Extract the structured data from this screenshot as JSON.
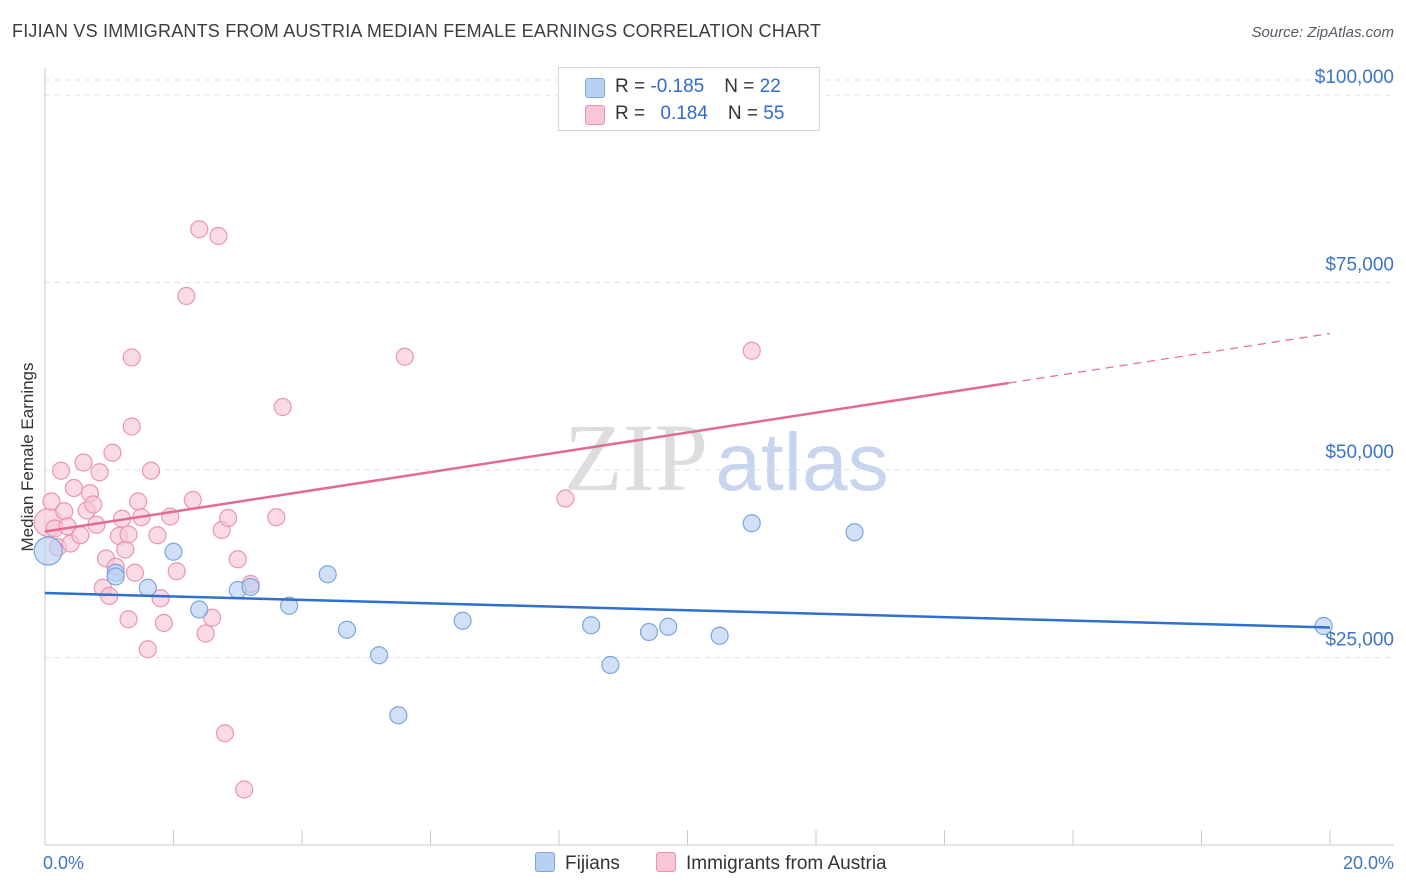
{
  "title": "FIJIAN VS IMMIGRANTS FROM AUSTRIA MEDIAN FEMALE EARNINGS CORRELATION CHART",
  "source": "Source: ZipAtlas.com",
  "watermark": {
    "zip": "ZIP",
    "atlas": "atlas"
  },
  "legend": {
    "fijians": {
      "r_label": "R = ",
      "r_value": "-0.185",
      "n_label": "N = ",
      "n_value": "22"
    },
    "austria": {
      "r_label": "R = ",
      "r_value": "0.184",
      "n_label": "N = ",
      "n_value": "55"
    }
  },
  "colors": {
    "blue_fill": "#b8d0f2",
    "blue_stroke": "#7aa4e0",
    "blue_line": "#2e6fd0",
    "pink_fill": "#f8c6d6",
    "pink_stroke": "#eb94b2",
    "pink_line": "#e26a93",
    "tick_text": "#3d74c6",
    "grid": "#dfe1e5"
  },
  "chart_data": {
    "type": "scatter",
    "title": "FIJIAN VS IMMIGRANTS FROM AUSTRIA MEDIAN FEMALE EARNINGS CORRELATION CHART",
    "xlabel": "",
    "ylabel": "Median Female Earnings",
    "xlim": [
      0,
      20
    ],
    "ylim": [
      0,
      102000
    ],
    "x_tick_labels": {
      "left": "0.0%",
      "right": "20.0%"
    },
    "y_ticks": [
      {
        "value": 25000,
        "label": "$25,000"
      },
      {
        "value": 50000,
        "label": "$50,000"
      },
      {
        "value": 75000,
        "label": "$75,000"
      },
      {
        "value": 100000,
        "label": "$100,000"
      }
    ],
    "series": [
      {
        "name": "Fijians",
        "r": -0.185,
        "n": 22,
        "trend": {
          "x0": 0,
          "y0": 33600,
          "x1": 20,
          "y1": 29000,
          "solid_to": 20
        },
        "points": [
          {
            "x": 0.05,
            "y": 39200,
            "big": true
          },
          {
            "x": 1.1,
            "y": 36300
          },
          {
            "x": 1.1,
            "y": 35800
          },
          {
            "x": 1.6,
            "y": 34300
          },
          {
            "x": 2.0,
            "y": 39100
          },
          {
            "x": 2.4,
            "y": 31400
          },
          {
            "x": 3.0,
            "y": 34000
          },
          {
            "x": 3.2,
            "y": 34400
          },
          {
            "x": 3.8,
            "y": 31900
          },
          {
            "x": 4.4,
            "y": 36100
          },
          {
            "x": 4.7,
            "y": 28700
          },
          {
            "x": 5.2,
            "y": 25300
          },
          {
            "x": 5.5,
            "y": 17300
          },
          {
            "x": 6.5,
            "y": 29900
          },
          {
            "x": 8.5,
            "y": 29300
          },
          {
            "x": 8.8,
            "y": 24000
          },
          {
            "x": 9.4,
            "y": 28400
          },
          {
            "x": 9.7,
            "y": 29100
          },
          {
            "x": 10.5,
            "y": 27900
          },
          {
            "x": 11.0,
            "y": 42900
          },
          {
            "x": 12.6,
            "y": 41700
          },
          {
            "x": 19.9,
            "y": 29200
          }
        ]
      },
      {
        "name": "Immigrants from Austria",
        "r": 0.184,
        "n": 55,
        "trend": {
          "x0": 0,
          "y0": 41800,
          "x1": 20,
          "y1": 68200,
          "solid_to": 15
        },
        "points": [
          {
            "x": 0.05,
            "y": 43000,
            "big": true
          },
          {
            "x": 0.1,
            "y": 45800
          },
          {
            "x": 0.15,
            "y": 42200
          },
          {
            "x": 0.2,
            "y": 39700
          },
          {
            "x": 0.25,
            "y": 49900
          },
          {
            "x": 0.3,
            "y": 44500
          },
          {
            "x": 0.35,
            "y": 42500
          },
          {
            "x": 0.4,
            "y": 40200
          },
          {
            "x": 0.45,
            "y": 47600
          },
          {
            "x": 0.55,
            "y": 41300
          },
          {
            "x": 0.6,
            "y": 51000
          },
          {
            "x": 0.65,
            "y": 44600
          },
          {
            "x": 0.7,
            "y": 46900
          },
          {
            "x": 0.75,
            "y": 45400
          },
          {
            "x": 0.8,
            "y": 42700
          },
          {
            "x": 0.85,
            "y": 49700
          },
          {
            "x": 0.9,
            "y": 34300
          },
          {
            "x": 0.95,
            "y": 38200
          },
          {
            "x": 1.0,
            "y": 33200
          },
          {
            "x": 1.05,
            "y": 52300
          },
          {
            "x": 1.1,
            "y": 37100
          },
          {
            "x": 1.15,
            "y": 41200
          },
          {
            "x": 1.2,
            "y": 43500
          },
          {
            "x": 1.25,
            "y": 39400
          },
          {
            "x": 1.3,
            "y": 30100
          },
          {
            "x": 1.35,
            "y": 55800
          },
          {
            "x": 1.4,
            "y": 36300
          },
          {
            "x": 1.45,
            "y": 45800
          },
          {
            "x": 1.5,
            "y": 43700
          },
          {
            "x": 1.3,
            "y": 41400
          },
          {
            "x": 1.35,
            "y": 65000
          },
          {
            "x": 1.6,
            "y": 26100
          },
          {
            "x": 1.65,
            "y": 49900
          },
          {
            "x": 1.75,
            "y": 41300
          },
          {
            "x": 1.8,
            "y": 32900
          },
          {
            "x": 1.85,
            "y": 29600
          },
          {
            "x": 1.95,
            "y": 43800
          },
          {
            "x": 2.05,
            "y": 36500
          },
          {
            "x": 2.2,
            "y": 73200
          },
          {
            "x": 2.3,
            "y": 46000
          },
          {
            "x": 2.4,
            "y": 82100
          },
          {
            "x": 2.5,
            "y": 28200
          },
          {
            "x": 2.7,
            "y": 81200
          },
          {
            "x": 2.6,
            "y": 30300
          },
          {
            "x": 2.75,
            "y": 42000
          },
          {
            "x": 2.8,
            "y": 14900
          },
          {
            "x": 2.85,
            "y": 43600
          },
          {
            "x": 3.0,
            "y": 38100
          },
          {
            "x": 3.1,
            "y": 7400
          },
          {
            "x": 3.2,
            "y": 34800
          },
          {
            "x": 3.6,
            "y": 43700
          },
          {
            "x": 3.7,
            "y": 58400
          },
          {
            "x": 5.6,
            "y": 65100
          },
          {
            "x": 8.1,
            "y": 46200
          },
          {
            "x": 11.0,
            "y": 65900
          }
        ]
      }
    ]
  }
}
